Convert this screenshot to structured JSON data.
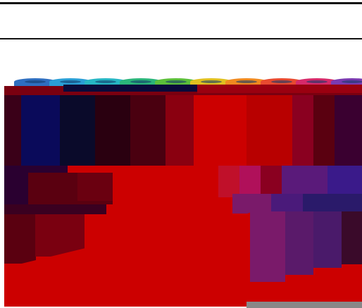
{
  "palette": {
    "red": "#cc0000",
    "dark_red": "#5a0010",
    "maroon": "#3a0018",
    "navy": "#0a0a3a",
    "blue": "#1e5aa8",
    "purple": "#4a1a6a",
    "magenta": "#b0105a",
    "cap_colors": [
      "#2f6fc0",
      "#2a9fd6",
      "#27b6c4",
      "#2bb57a",
      "#5cbf3a",
      "#e0c020",
      "#f08a20",
      "#e84a30",
      "#d62a6a",
      "#7a3ab0"
    ]
  },
  "elements": {
    "top_rule": "horizontal-line",
    "second_rule": "horizontal-line",
    "image": "corrupted-image"
  }
}
